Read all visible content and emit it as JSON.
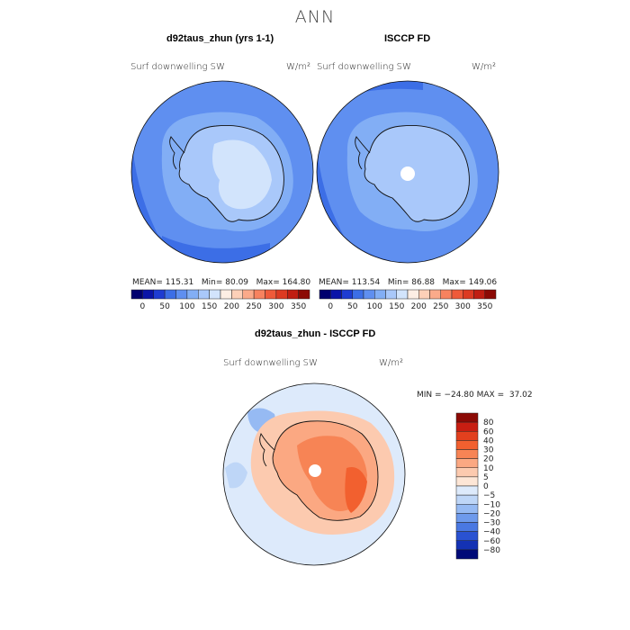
{
  "title": "ANN",
  "panels": [
    {
      "title": "d92taus_zhun (yrs 1-1)",
      "variable": "Surf downwelling SW",
      "units": "W/m²",
      "stats": {
        "mean_label": "MEAN=",
        "mean": "115.31",
        "min_label": "Min=",
        "min": "80.09",
        "max_label": "Max=",
        "max": "164.80"
      }
    },
    {
      "title": "ISCCP FD",
      "variable": "Surf downwelling SW",
      "units": "W/m²",
      "stats": {
        "mean_label": "MEAN=",
        "mean": "113.54",
        "min_label": "Min=",
        "min": "86.88",
        "max_label": "Max=",
        "max": "149.06"
      }
    }
  ],
  "colorbar_top": {
    "ticks": [
      "0",
      "50",
      "100",
      "150",
      "200",
      "250",
      "300",
      "350"
    ],
    "colors": [
      "#00006e",
      "#0a14a8",
      "#1e3cd2",
      "#3c6ee6",
      "#5f8ff0",
      "#82aef5",
      "#a9c8fa",
      "#d2e4fc",
      "#fdeee4",
      "#fdd0b8",
      "#fbaa8a",
      "#f7825f",
      "#ef5a3a",
      "#dc3a22",
      "#c01e12",
      "#8c0a05"
    ]
  },
  "difference": {
    "title": "d92taus_zhun - ISCCP FD",
    "variable": "Surf downwelling SW",
    "units": "W/m²",
    "min_label": "MIN =",
    "min": "−24.80",
    "max_label": "MAX =",
    "max": "37.02"
  },
  "colorbar_diff": {
    "ticks": [
      "80",
      "60",
      "40",
      "30",
      "20",
      "10",
      "5",
      "0",
      "−5",
      "−10",
      "−20",
      "−30",
      "−40",
      "−60",
      "−80"
    ],
    "colors": [
      "#8c0a05",
      "#c81e12",
      "#e2401e",
      "#f2602f",
      "#f78455",
      "#fba882",
      "#fccaaf",
      "#fde6d6",
      "#ddeafb",
      "#bed6f7",
      "#96baf3",
      "#6e9aec",
      "#4a78e2",
      "#2a52d2",
      "#1432b4",
      "#000a78"
    ]
  },
  "map_colors": {
    "ocean_mid": "#5f8ff0",
    "ocean_dark": "#3c6ee6",
    "ice": "#a9c8fa",
    "ice_light": "#d2e4fc",
    "pole": "#ffffff",
    "diff_neutral": "#ddeafb",
    "diff_warm": "#fba882",
    "diff_hot": "#f2602f",
    "diff_cool": "#96baf3"
  }
}
